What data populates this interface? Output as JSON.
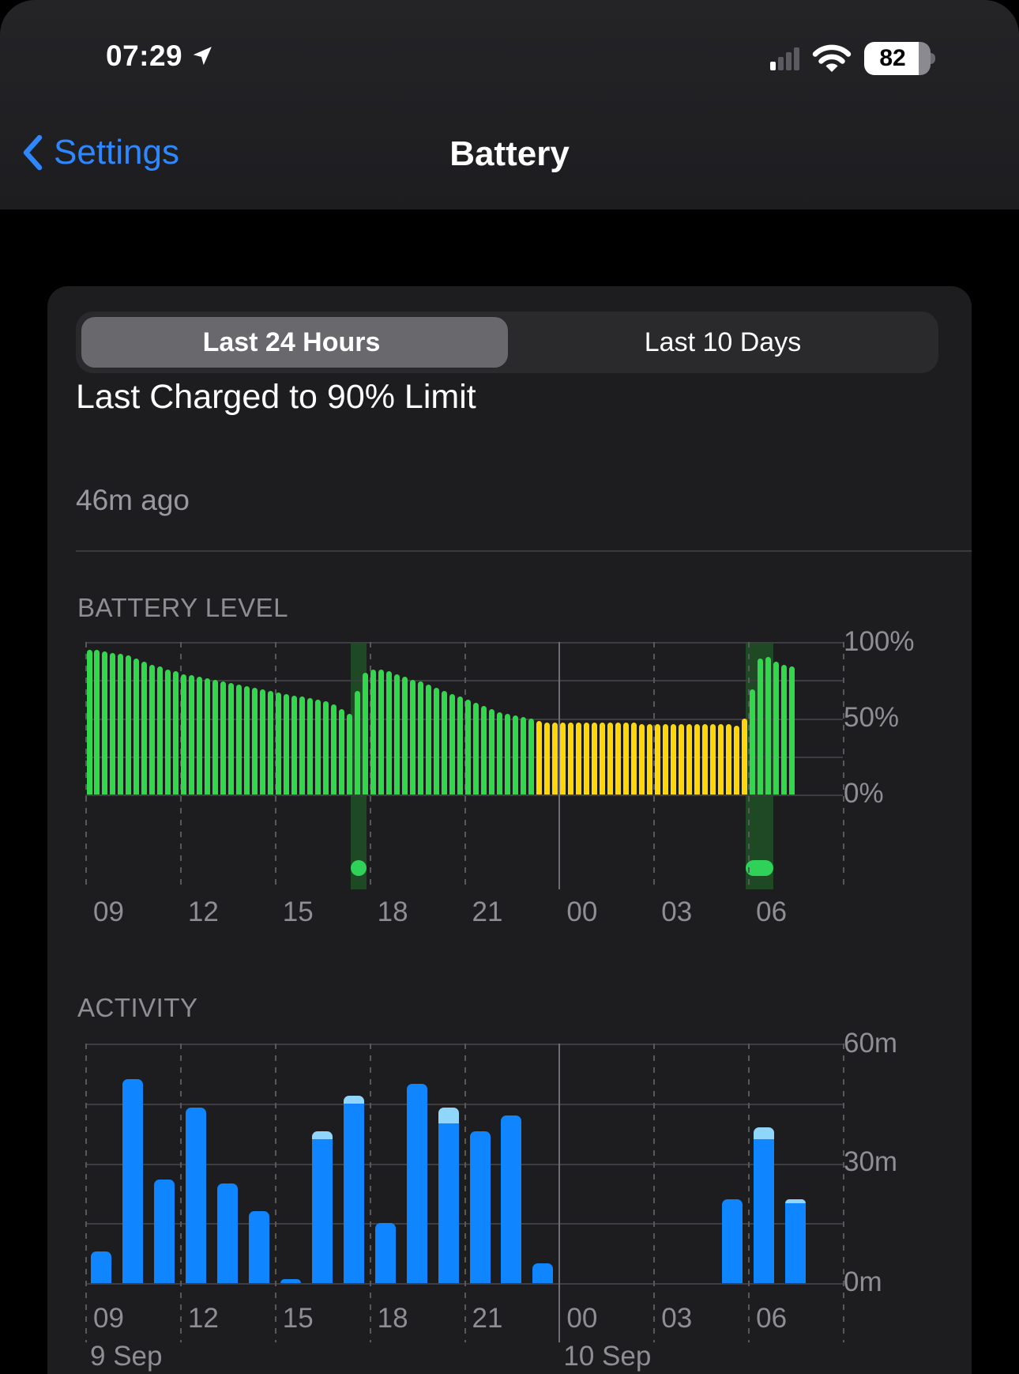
{
  "status_bar": {
    "time": "07:29",
    "battery_percent": 82,
    "battery_label": "82"
  },
  "nav": {
    "back_label": "Settings",
    "title": "Battery"
  },
  "tabs": {
    "tab1": "Last 24 Hours",
    "tab2": "Last 10 Days",
    "selected": "Last 24 Hours"
  },
  "summary": {
    "title": "Last Charged to 90% Limit",
    "subtitle": "46m ago"
  },
  "colors": {
    "green": "#32d74b",
    "yellow": "#ffd60a",
    "charge_band": "#1f4824",
    "charge_indicator": "#30d158",
    "blue": "#0f85ff",
    "light_blue": "#8fd6fa",
    "accent_blue": "#2d87ff"
  },
  "chart_data": [
    {
      "type": "bar",
      "title": "BATTERY LEVEL",
      "ylabel": "battery percent",
      "ylim": [
        0,
        100
      ],
      "y_tick_labels": [
        "100%",
        "50%",
        "0%"
      ],
      "x_tick_labels": [
        "09",
        "12",
        "15",
        "18",
        "21",
        "00",
        "03",
        "06"
      ],
      "start_hour": 9,
      "hours_span": 24,
      "interval_minutes": 15,
      "grid": {
        "h_lines": 5,
        "v_every_hours": 3,
        "solid_tick_index": 5,
        "legend": "none"
      },
      "values": [
        95,
        95,
        94,
        93,
        92,
        91,
        89,
        87,
        85,
        84,
        82,
        81,
        79,
        78,
        77,
        76,
        75,
        74,
        73,
        72,
        71,
        70,
        69,
        68,
        67,
        66,
        65,
        64,
        63,
        62,
        61,
        59,
        56,
        53,
        68,
        80,
        82,
        82,
        81,
        79,
        77,
        75,
        74,
        72,
        70,
        68,
        66,
        64,
        62,
        60,
        58,
        56,
        54,
        53,
        52,
        51,
        50,
        48,
        47,
        47,
        47,
        47,
        47,
        47,
        47,
        47,
        47,
        47,
        47,
        47,
        46,
        46,
        46,
        46,
        46,
        46,
        46,
        46,
        46,
        46,
        46,
        46,
        45,
        50,
        69,
        89,
        90,
        87,
        85,
        84
      ],
      "low_power_yellow_from_index": 57,
      "low_power_yellow_to_index": 83,
      "charging_bands": [
        {
          "start_hour_offset": 8.42,
          "end_hour_offset": 8.92,
          "indicator": "dot"
        },
        {
          "start_hour_offset": 20.93,
          "end_hour_offset": 21.8,
          "indicator": "pill"
        }
      ]
    },
    {
      "type": "bar",
      "title": "ACTIVITY",
      "ylabel": "minutes of activity per hour",
      "ylim": [
        0,
        60
      ],
      "y_tick_labels": [
        "60m",
        "30m",
        "0m"
      ],
      "x_tick_labels": [
        "09",
        "12",
        "15",
        "18",
        "21",
        "00",
        "03",
        "06"
      ],
      "start_hour": 9,
      "hours_span": 24,
      "interval_minutes": 60,
      "grid": {
        "h_lines": 5,
        "v_every_hours": 3,
        "solid_tick_index": 5,
        "legend": "none"
      },
      "values": [
        8,
        51,
        26,
        44,
        25,
        18,
        1,
        38,
        47,
        15,
        50,
        44,
        38,
        42,
        5,
        0,
        0,
        0,
        0,
        0,
        21,
        39,
        21
      ],
      "cap_values": [
        0,
        0,
        0,
        0,
        0,
        0,
        0,
        2,
        2,
        0,
        0,
        4,
        0,
        0,
        0,
        0,
        0,
        0,
        0,
        0,
        0,
        3,
        1
      ],
      "date_labels": [
        {
          "text": "9 Sep",
          "at_tick_index": 0
        },
        {
          "text": "10 Sep",
          "at_tick_index": 5
        }
      ]
    }
  ]
}
